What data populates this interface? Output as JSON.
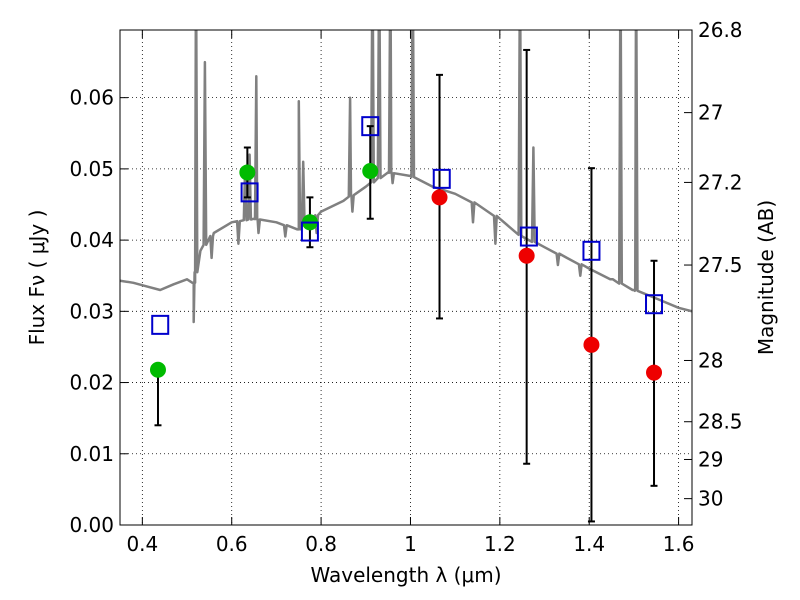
{
  "chart_data": {
    "type": "scatter",
    "xlabel": "Wavelength  λ (μm)",
    "ylabel": "Flux  Fν  ( μJy )",
    "y2label": "Magnitude (AB)",
    "xlim": [
      0.35,
      1.63
    ],
    "ylim": [
      0.0,
      0.0695
    ],
    "x_ticks": [
      0.4,
      0.6,
      0.8,
      1.0,
      1.2,
      1.4,
      1.6
    ],
    "x_tick_labels": [
      "0.4",
      "0.6",
      "0.8",
      "1",
      "1.2",
      "1.4",
      "1.6"
    ],
    "y_ticks": [
      0.0,
      0.01,
      0.02,
      0.03,
      0.04,
      0.05,
      0.06
    ],
    "y_tick_labels": [
      "0.00",
      "0.01",
      "0.02",
      "0.03",
      "0.04",
      "0.05",
      "0.06"
    ],
    "y2_ticks": [
      {
        "label": "26.8",
        "flux": 0.0695
      },
      {
        "label": "27",
        "flux": 0.0579
      },
      {
        "label": "27.2",
        "flux": 0.0481
      },
      {
        "label": "27.5",
        "flux": 0.0365
      },
      {
        "label": "28",
        "flux": 0.0231
      },
      {
        "label": "28.5",
        "flux": 0.0145
      },
      {
        "label": "29",
        "flux": 0.0092
      },
      {
        "label": "30",
        "flux": 0.0037
      }
    ],
    "grid": true,
    "colors": {
      "model": "#808080",
      "green_points": "#00bb00",
      "red_points": "#ee0000",
      "squares": "#0000cc",
      "errorbars": "#000000"
    },
    "series": [
      {
        "kind": "model_spectrum",
        "continuum": [
          [
            0.35,
            0.0343
          ],
          [
            0.38,
            0.034
          ],
          [
            0.41,
            0.0335
          ],
          [
            0.44,
            0.033
          ],
          [
            0.47,
            0.0338
          ],
          [
            0.5,
            0.0345
          ],
          [
            0.515,
            0.034
          ],
          [
            0.53,
            0.0385
          ],
          [
            0.56,
            0.041
          ],
          [
            0.6,
            0.0425
          ],
          [
            0.65,
            0.043
          ],
          [
            0.7,
            0.0425
          ],
          [
            0.75,
            0.0415
          ],
          [
            0.8,
            0.044
          ],
          [
            0.85,
            0.0455
          ],
          [
            0.9,
            0.0475
          ],
          [
            0.95,
            0.0495
          ],
          [
            1.0,
            0.049
          ],
          [
            1.05,
            0.0475
          ],
          [
            1.1,
            0.0465
          ],
          [
            1.15,
            0.045
          ],
          [
            1.2,
            0.043
          ],
          [
            1.25,
            0.0405
          ],
          [
            1.3,
            0.039
          ],
          [
            1.35,
            0.0375
          ],
          [
            1.4,
            0.036
          ],
          [
            1.45,
            0.0345
          ],
          [
            1.5,
            0.033
          ],
          [
            1.55,
            0.0318
          ],
          [
            1.6,
            0.0305
          ],
          [
            1.63,
            0.03
          ]
        ],
        "absorption": [
          [
            0.515,
            0.0285
          ],
          [
            0.555,
            0.0375
          ],
          [
            0.615,
            0.0395
          ],
          [
            0.66,
            0.041
          ],
          [
            0.72,
            0.0405
          ],
          [
            0.79,
            0.041
          ],
          [
            0.87,
            0.044
          ],
          [
            0.96,
            0.048
          ],
          [
            1.14,
            0.0425
          ],
          [
            1.19,
            0.0395
          ],
          [
            1.33,
            0.0365
          ],
          [
            1.38,
            0.035
          ],
          [
            1.45,
            0.0345
          ],
          [
            1.5,
            0.033
          ]
        ],
        "emission": [
          [
            0.52,
            0.08
          ],
          [
            0.54,
            0.065
          ],
          [
            0.63,
            0.05
          ],
          [
            0.64,
            0.052
          ],
          [
            0.655,
            0.063
          ],
          [
            0.75,
            0.0595
          ],
          [
            0.76,
            0.051
          ],
          [
            0.865,
            0.06
          ],
          [
            0.915,
            0.08
          ],
          [
            0.93,
            0.08
          ],
          [
            0.955,
            0.08
          ],
          [
            1.005,
            0.08
          ],
          [
            1.245,
            0.08
          ],
          [
            1.275,
            0.053
          ],
          [
            1.47,
            0.08
          ],
          [
            1.505,
            0.08
          ]
        ]
      },
      {
        "kind": "observed_green",
        "points": [
          {
            "x": 0.435,
            "y": 0.0218,
            "err_lo": 0.014,
            "err_hi": 0.0218
          },
          {
            "x": 0.635,
            "y": 0.0495,
            "err_lo": 0.046,
            "err_hi": 0.053
          },
          {
            "x": 0.775,
            "y": 0.0425,
            "err_lo": 0.039,
            "err_hi": 0.046
          },
          {
            "x": 0.91,
            "y": 0.0497,
            "err_lo": 0.043,
            "err_hi": 0.056
          }
        ]
      },
      {
        "kind": "observed_red",
        "points": [
          {
            "x": 1.065,
            "y": 0.046,
            "err_lo": 0.029,
            "err_hi": 0.0632
          },
          {
            "x": 1.26,
            "y": 0.0378,
            "err_lo": 0.0086,
            "err_hi": 0.0667
          },
          {
            "x": 1.405,
            "y": 0.0253,
            "err_lo": 0.0005,
            "err_hi": 0.0501
          },
          {
            "x": 1.545,
            "y": 0.0214,
            "err_lo": 0.0055,
            "err_hi": 0.0371
          }
        ]
      },
      {
        "kind": "model_bandpass_squares",
        "points": [
          {
            "x": 0.44,
            "y": 0.0281
          },
          {
            "x": 0.64,
            "y": 0.0467
          },
          {
            "x": 0.775,
            "y": 0.0412
          },
          {
            "x": 0.91,
            "y": 0.056
          },
          {
            "x": 1.07,
            "y": 0.0486
          },
          {
            "x": 1.265,
            "y": 0.0405
          },
          {
            "x": 1.405,
            "y": 0.0385
          },
          {
            "x": 1.545,
            "y": 0.031
          }
        ]
      }
    ]
  }
}
